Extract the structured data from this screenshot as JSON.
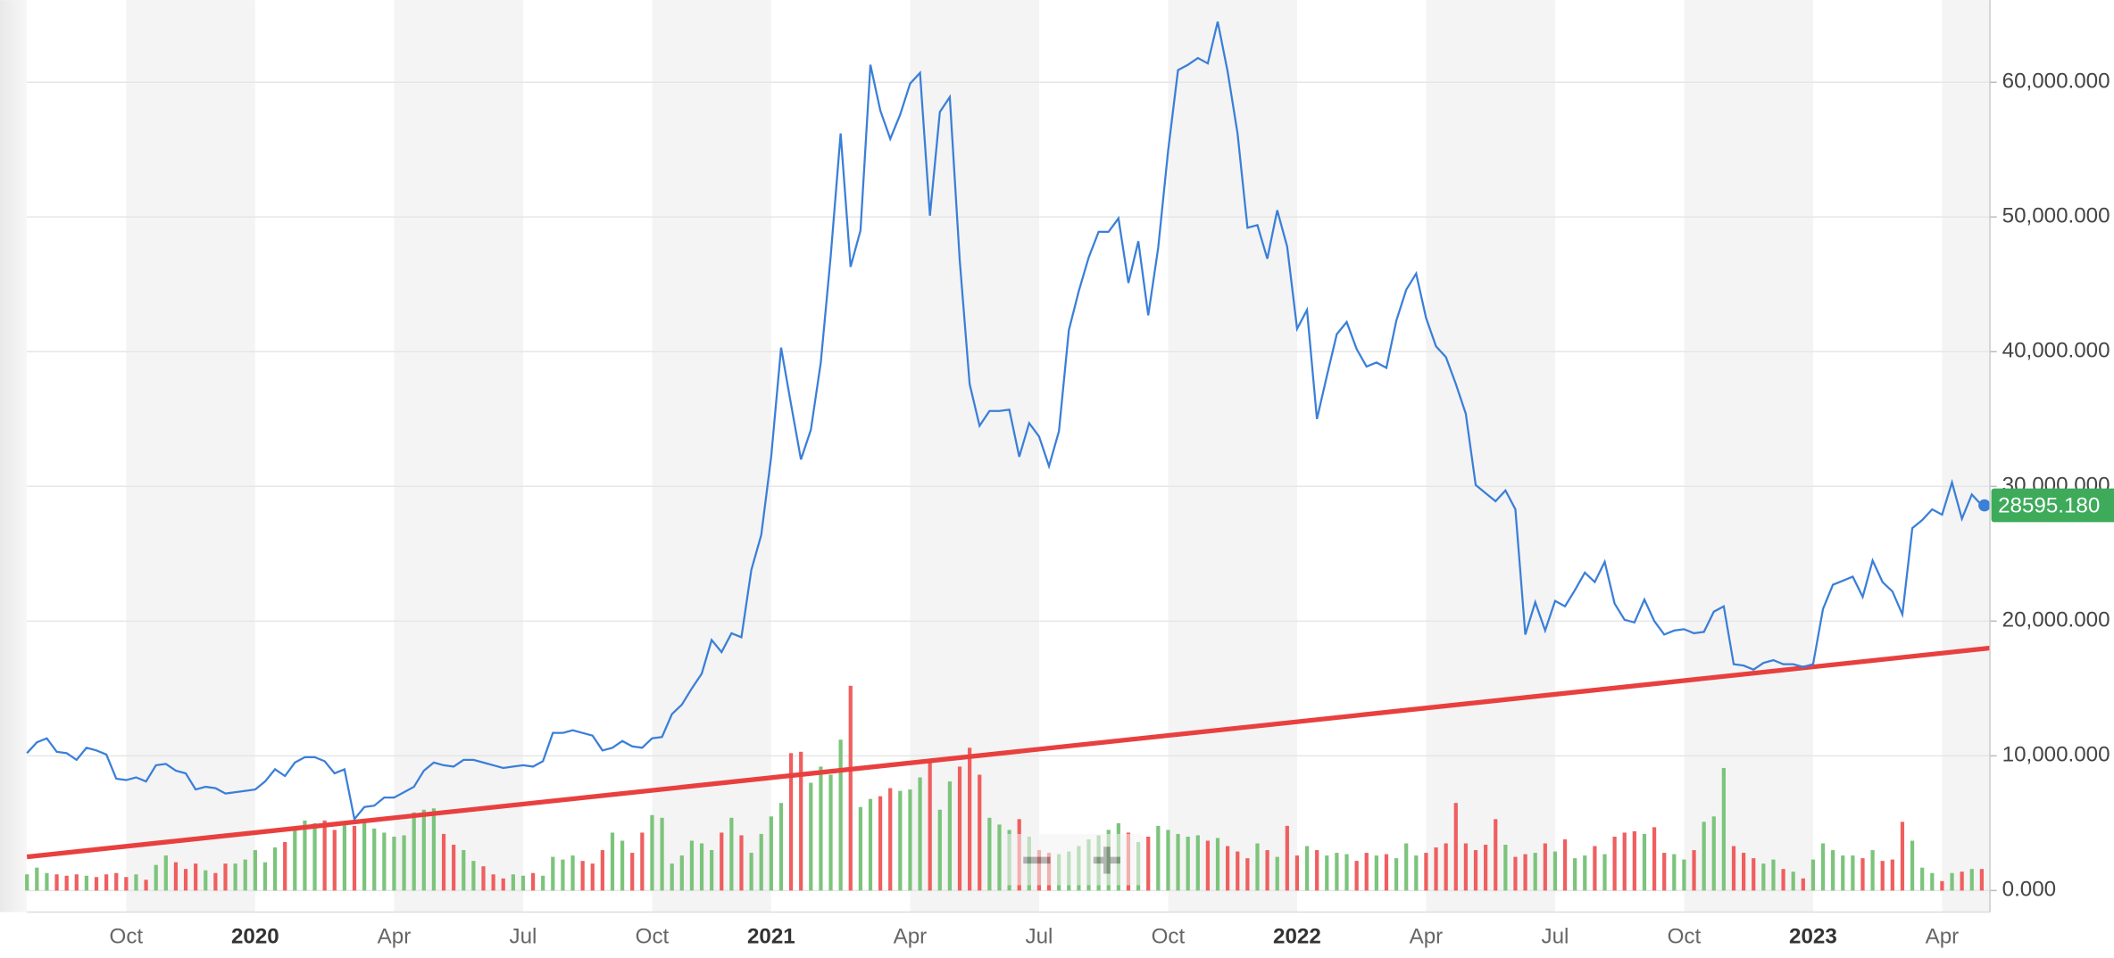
{
  "chart_data": {
    "type": "line",
    "categories": [
      null,
      null,
      null,
      null,
      null,
      null,
      null,
      null,
      null,
      null,
      "Oct",
      null,
      null,
      null,
      null,
      null,
      null,
      null,
      null,
      null,
      null,
      null,
      null,
      "2020",
      null,
      null,
      null,
      null,
      null,
      null,
      null,
      null,
      null,
      null,
      null,
      null,
      null,
      "Apr",
      null,
      null,
      null,
      null,
      null,
      null,
      null,
      null,
      null,
      null,
      null,
      null,
      "Jul",
      null,
      null,
      null,
      null,
      null,
      null,
      null,
      null,
      null,
      null,
      null,
      null,
      "Oct",
      null,
      null,
      null,
      null,
      null,
      null,
      null,
      null,
      null,
      null,
      null,
      "2021",
      null,
      null,
      null,
      null,
      null,
      null,
      null,
      null,
      null,
      null,
      null,
      null,
      null,
      "Apr",
      null,
      null,
      null,
      null,
      null,
      null,
      null,
      null,
      null,
      null,
      null,
      null,
      "Jul",
      null,
      null,
      null,
      null,
      null,
      null,
      null,
      null,
      null,
      null,
      null,
      null,
      "Oct",
      null,
      null,
      null,
      null,
      null,
      null,
      null,
      null,
      null,
      null,
      null,
      null,
      "2022",
      null,
      null,
      null,
      null,
      null,
      null,
      null,
      null,
      null,
      null,
      null,
      null,
      "Apr",
      null,
      null,
      null,
      null,
      null,
      null,
      null,
      null,
      null,
      null,
      null,
      null,
      "Jul",
      null,
      null,
      null,
      null,
      null,
      null,
      null,
      null,
      null,
      null,
      null,
      null,
      "Oct",
      null,
      null,
      null,
      null,
      null,
      null,
      null,
      null,
      null,
      null,
      null,
      null,
      "2023",
      null,
      null,
      null,
      null,
      null,
      null,
      null,
      null,
      null,
      null,
      null,
      null,
      "Apr",
      null,
      null,
      null,
      null
    ],
    "series": [
      {
        "color": "#3a7fd8",
        "values": [
          10200,
          11000,
          11300,
          10300,
          10200,
          9700,
          10600,
          10400,
          10100,
          8300,
          8200,
          8400,
          8100,
          9300,
          9400,
          8900,
          8700,
          7500,
          7700,
          7600,
          7200,
          7300,
          7400,
          7500,
          8100,
          9000,
          8500,
          9500,
          9900,
          9900,
          9600,
          8700,
          9000,
          5300,
          6200,
          6300,
          6900,
          6900,
          7300,
          7700,
          8900,
          9500,
          9300,
          9200,
          9700,
          9700,
          9500,
          9300,
          9100,
          9200,
          9300,
          9200,
          9600,
          11700,
          11700,
          11900,
          11700,
          11500,
          10400,
          10600,
          11100,
          10700,
          10600,
          11300,
          11400,
          13100,
          13800,
          15000,
          16100,
          18600,
          17700,
          19100,
          18800,
          23800,
          26400,
          32200,
          40300,
          36100,
          32000,
          34200,
          39200,
          47100,
          56200,
          46300,
          49000,
          61300,
          57900,
          55800,
          57600,
          59900,
          60700,
          50100,
          57800,
          58900,
          46800,
          37600,
          34500,
          35600,
          35600,
          35700,
          32200,
          34700,
          33700,
          31500,
          34100,
          41600,
          44500,
          47000,
          48900,
          48900,
          49900,
          45100,
          48200,
          42700,
          47700,
          54900,
          60900,
          61300,
          61800,
          61400,
          64500,
          60800,
          56200,
          49200,
          49400,
          46900,
          50500,
          47800,
          41700,
          43100,
          35000,
          38200,
          41300,
          42200,
          40200,
          38900,
          39200,
          38800,
          42300,
          44600,
          45800,
          42500,
          40400,
          39600,
          37600,
          35400,
          30100,
          29500,
          28900,
          29700,
          28300,
          19000,
          21400,
          19300,
          21500,
          21100,
          22300,
          23600,
          22900,
          24400,
          21300,
          20100,
          19900,
          21600,
          20000,
          19000,
          19300,
          19400,
          19100,
          19200,
          20700,
          21100,
          16800,
          16700,
          16400,
          16900,
          17100,
          16800,
          16800,
          16600,
          16800,
          20900,
          22700,
          23000,
          23300,
          21800,
          24500,
          22900,
          22200,
          20500,
          26900,
          27500,
          28300,
          27900,
          30300,
          27600,
          29400,
          28595.18
        ]
      }
    ],
    "current_label": "28595.180",
    "current_label_color": "#3dab5a",
    "volume": {
      "up_color": "#7cc47c",
      "down_color": "#ef5f5f",
      "values": [
        1200,
        1700,
        1300,
        1200,
        1100,
        1200,
        1100,
        1000,
        1200,
        1300,
        1000,
        1200,
        800,
        1900,
        2600,
        2100,
        1600,
        2000,
        1500,
        1300,
        2000,
        2000,
        2300,
        3000,
        2100,
        3200,
        3600,
        4500,
        5200,
        5000,
        5200,
        4500,
        5000,
        4800,
        5300,
        4600,
        4300,
        4000,
        4100,
        5800,
        6000,
        6100,
        4200,
        3400,
        3000,
        2200,
        1800,
        1200,
        900,
        1200,
        1100,
        1300,
        1100,
        2500,
        2300,
        2600,
        2200,
        2000,
        3000,
        4300,
        3700,
        2800,
        4300,
        5600,
        5400,
        2000,
        2600,
        3700,
        3500,
        3000,
        4300,
        5400,
        4100,
        2800,
        4200,
        5500,
        6500,
        10200,
        10300,
        8000,
        9200,
        8600,
        11200,
        15200,
        6200,
        6800,
        7000,
        7600,
        7400,
        7500,
        8400,
        9600,
        6000,
        8100,
        9200,
        10600,
        8600,
        5400,
        4900,
        4500,
        5300,
        4000,
        3000,
        2800,
        2700,
        2900,
        3300,
        3800,
        4100,
        4500,
        5000,
        4300,
        3600,
        4000,
        4800,
        4500,
        4200,
        4000,
        4100,
        3700,
        3900,
        3300,
        2900,
        2400,
        3500,
        3000,
        2500,
        4800,
        2600,
        3300,
        3000,
        2600,
        2800,
        2700,
        2200,
        2800,
        2600,
        2700,
        2400,
        3500,
        2600,
        2800,
        3200,
        3500,
        6500,
        3500,
        3000,
        3400,
        5300,
        3400,
        2500,
        2700,
        2800,
        3500,
        2900,
        3800,
        2400,
        2600,
        3300,
        2700,
        4000,
        4300,
        4400,
        4200,
        4700,
        2800,
        2700,
        2300,
        3000,
        5100,
        5500,
        9100,
        3300,
        2800,
        2400,
        2000,
        2300,
        1600,
        1400,
        900,
        2300,
        3500,
        3000,
        2600,
        2600,
        2400,
        3000,
        2200,
        2300,
        5100,
        3700,
        1700,
        1300,
        700,
        1300,
        1400,
        1600,
        1600
      ]
    },
    "trendline": {
      "color": "#e8403f",
      "start": 2500,
      "end": 18000
    },
    "ylim": [
      -1600,
      66100
    ],
    "yticks": [
      {
        "value": 0,
        "label": "0.000"
      },
      {
        "value": 10000,
        "label": "10,000.000"
      },
      {
        "value": 20000,
        "label": "20,000.000"
      },
      {
        "value": 30000,
        "label": "30,000.000"
      },
      {
        "value": 40000,
        "label": "40,000.000"
      },
      {
        "value": 50000,
        "label": "50,000.000"
      },
      {
        "value": 60000,
        "label": "60,000.000"
      }
    ],
    "grid": true
  }
}
